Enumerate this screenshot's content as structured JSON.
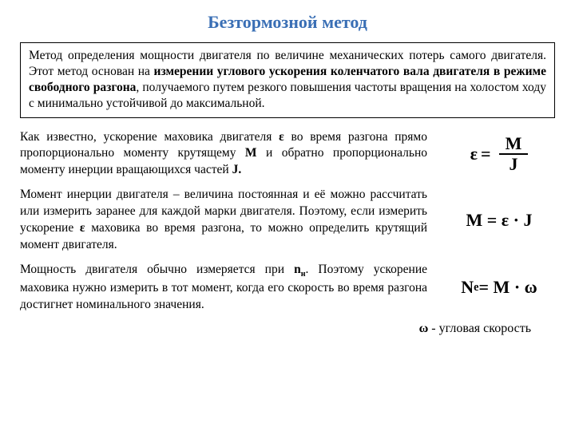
{
  "title": "Безтормозной метод",
  "title_color": "#3a6fb5",
  "intro": {
    "text_parts": [
      "Метод определения мощности двигателя по величине механических потерь самого двигателя. Этот метод основан на ",
      "измерении углового ускорения коленчатого вала двигателя в режиме свободного разгона",
      ", получаемого путем резкого повышения частоты вращения на холостом ходу с минимально устойчивой до максимальной."
    ]
  },
  "block1": {
    "p1": "Как известно, ускорение маховика двигателя ",
    "eps1": "ε",
    "p2": " во время разгона прямо пропорционально моменту крутящему ",
    "m": "М",
    "p3": " и обратно пропорционально моменту инерции вращающихся частей ",
    "j": "J.",
    "formula": {
      "lhs": "ε",
      "eq": "=",
      "num": "M",
      "den": "J"
    }
  },
  "block2": {
    "p1": "Момент инерции двигателя – величина постоянная и её можно рассчитать или измерить заранее для каждой марки двигателя. Поэтому, если измерить ускорение ",
    "eps": "ε",
    "p2": " маховика во время разгона, то можно определить крутящий момент двигателя.",
    "formula": "M = ε · J"
  },
  "block3": {
    "p1": "Мощность двигателя обычно измеряется при ",
    "nn": "n",
    "nsub": "н",
    "p2": ". Поэтому ускорение маховика нужно измерить в тот момент, когда его скорость во время разгона достигнет номинального значения.",
    "formula_lhs": "N",
    "formula_sub": "e",
    "formula_rhs": " = M · ω"
  },
  "footer": {
    "sym": "ω",
    "text": " - угловая скорость"
  }
}
